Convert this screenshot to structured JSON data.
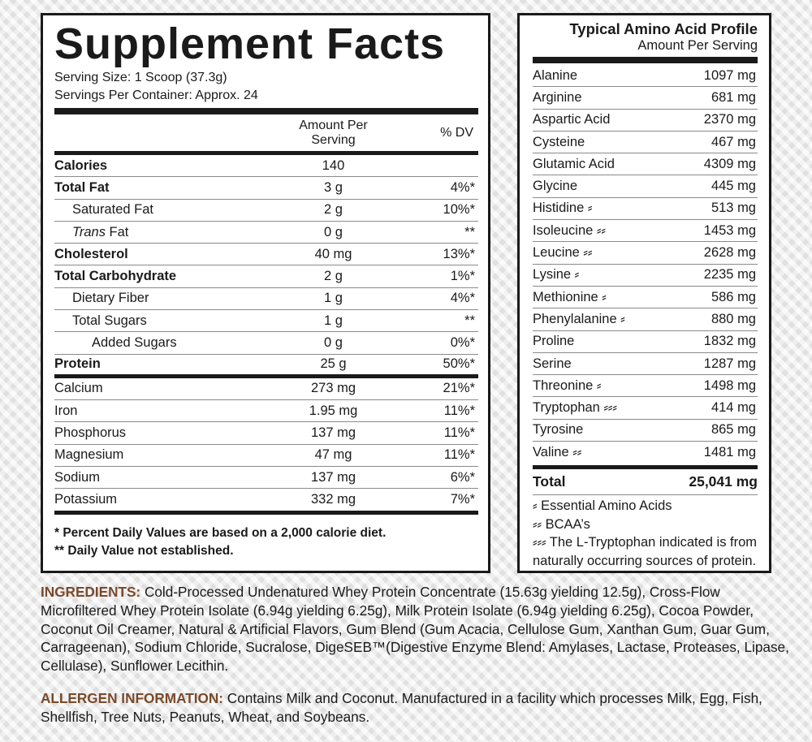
{
  "colors": {
    "label_brown": "#7a4a2a",
    "text": "#1a1a1a"
  },
  "supplement_facts": {
    "title": "Supplement Facts",
    "serving_size": "Serving Size: 1 Scoop (37.3g)",
    "servings_per_container": "Servings Per Container: Approx. 24",
    "header_amount_line1": "Amount Per",
    "header_amount_line2": "Serving",
    "header_dv": "% DV",
    "rows": [
      {
        "name": "Calories",
        "amount": "140",
        "dv": ""
      },
      {
        "name": "Total Fat",
        "amount": "3 g",
        "dv": "4%*"
      },
      {
        "name": "Saturated Fat",
        "amount": "2 g",
        "dv": "10%*"
      },
      {
        "name_italic": "Trans",
        "name_rest": " Fat",
        "amount": "0 g",
        "dv": "**"
      },
      {
        "name": "Cholesterol",
        "amount": "40 mg",
        "dv": "13%*"
      },
      {
        "name": "Total Carbohydrate",
        "amount": "2 g",
        "dv": "1%*"
      },
      {
        "name": "Dietary Fiber",
        "amount": "1 g",
        "dv": "4%*"
      },
      {
        "name": "Total Sugars",
        "amount": "1 g",
        "dv": "**"
      },
      {
        "name": "Added Sugars",
        "amount": "0 g",
        "dv": "0%*"
      },
      {
        "name": "Protein",
        "amount": "25 g",
        "dv": "50%*"
      },
      {
        "name": "Calcium",
        "amount": "273 mg",
        "dv": "21%*"
      },
      {
        "name": "Iron",
        "amount": "1.95 mg",
        "dv": "11%*"
      },
      {
        "name": "Phosphorus",
        "amount": "137 mg",
        "dv": "11%*"
      },
      {
        "name": "Magnesium",
        "amount": "47 mg",
        "dv": "11%*"
      },
      {
        "name": "Sodium",
        "amount": "137 mg",
        "dv": "6%*"
      },
      {
        "name": "Potassium",
        "amount": "332 mg",
        "dv": "7%*"
      }
    ],
    "footnote1": "* Percent Daily Values are based on a 2,000 calorie diet.",
    "footnote2": "** Daily Value not established."
  },
  "amino_profile": {
    "title": "Typical Amino Acid Profile",
    "subtitle": "Amount Per Serving",
    "rows": [
      {
        "name": "Alanine",
        "value": "1097 mg"
      },
      {
        "name": "Arginine",
        "value": "681 mg"
      },
      {
        "name": "Aspartic Acid",
        "value": "2370 mg"
      },
      {
        "name": "Cysteine",
        "value": "467 mg"
      },
      {
        "name": "Glutamic Acid",
        "value": "4309 mg"
      },
      {
        "name": "Glycine",
        "value": "445 mg"
      },
      {
        "name": "Histidine ⸗",
        "value": "513 mg"
      },
      {
        "name": "Isoleucine ⸗⸗",
        "value": "1453 mg"
      },
      {
        "name": "Leucine ⸗⸗",
        "value": "2628 mg"
      },
      {
        "name": "Lysine ⸗",
        "value": "2235 mg"
      },
      {
        "name": "Methionine ⸗",
        "value": "586 mg"
      },
      {
        "name": "Phenylalanine ⸗",
        "value": "880 mg"
      },
      {
        "name": "Proline",
        "value": "1832 mg"
      },
      {
        "name": "Serine",
        "value": "1287 mg"
      },
      {
        "name": "Threonine ⸗",
        "value": "1498 mg"
      },
      {
        "name": "Tryptophan ⸗⸗⸗",
        "value": "414 mg"
      },
      {
        "name": "Tyrosine",
        "value": "865 mg"
      },
      {
        "name": "Valine ⸗⸗",
        "value": "1481 mg"
      }
    ],
    "total_label": "Total",
    "total_value": "25,041 mg",
    "note1": "⸗ Essential Amino Acids",
    "note2": "⸗⸗ BCAA’s",
    "note3a": "⸗⸗⸗ The L-Tryptophan indicated is from",
    "note3b": "naturally occurring sources of protein."
  },
  "ingredients": {
    "label": "INGREDIENTS:",
    "text": " Cold-Processed Undenatured Whey Protein Concentrate (15.63g yielding 12.5g), Cross-Flow Microfiltered Whey Protein Isolate (6.94g yielding 6.25g), Milk Protein Isolate (6.94g yielding 6.25g), Cocoa Powder, Coconut Oil Creamer, Natural & Artificial Flavors, Gum Blend (Gum Acacia, Cellulose Gum, Xanthan Gum, Guar Gum, Carrageenan), Sodium Chloride, Sucralose, DigeSEB™(Digestive Enzyme Blend: Amylases, Lactase, Proteases, Lipase, Cellulase), Sunflower Lecithin."
  },
  "allergen": {
    "label": "ALLERGEN INFORMATION:",
    "text": " Contains Milk and Coconut. Manufactured in a facility which processes Milk, Egg, Fish, Shellfish, Tree Nuts, Peanuts, Wheat, and Soybeans."
  }
}
